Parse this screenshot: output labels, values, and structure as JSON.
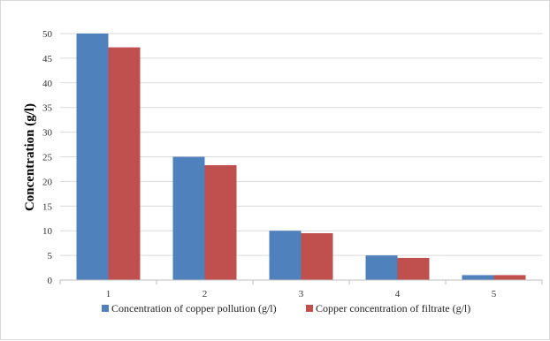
{
  "chart_data": {
    "type": "bar",
    "categories": [
      "1",
      "2",
      "3",
      "4",
      "5"
    ],
    "series": [
      {
        "name": "Concentration of copper pollution (g/l)",
        "values": [
          50,
          25,
          10,
          5,
          1
        ],
        "color": "#4f81bd"
      },
      {
        "name": "Copper concentration of filtrate (g/l)",
        "values": [
          47.2,
          23.3,
          9.5,
          4.5,
          1.0
        ],
        "color": "#c0504d"
      }
    ],
    "title": "",
    "xlabel": "",
    "ylabel": "Concentration (g/l)",
    "ylim": [
      0,
      50
    ],
    "yticks": [
      0,
      5,
      10,
      15,
      20,
      25,
      30,
      35,
      40,
      45,
      50
    ],
    "grid": true,
    "legend_position": "bottom"
  }
}
